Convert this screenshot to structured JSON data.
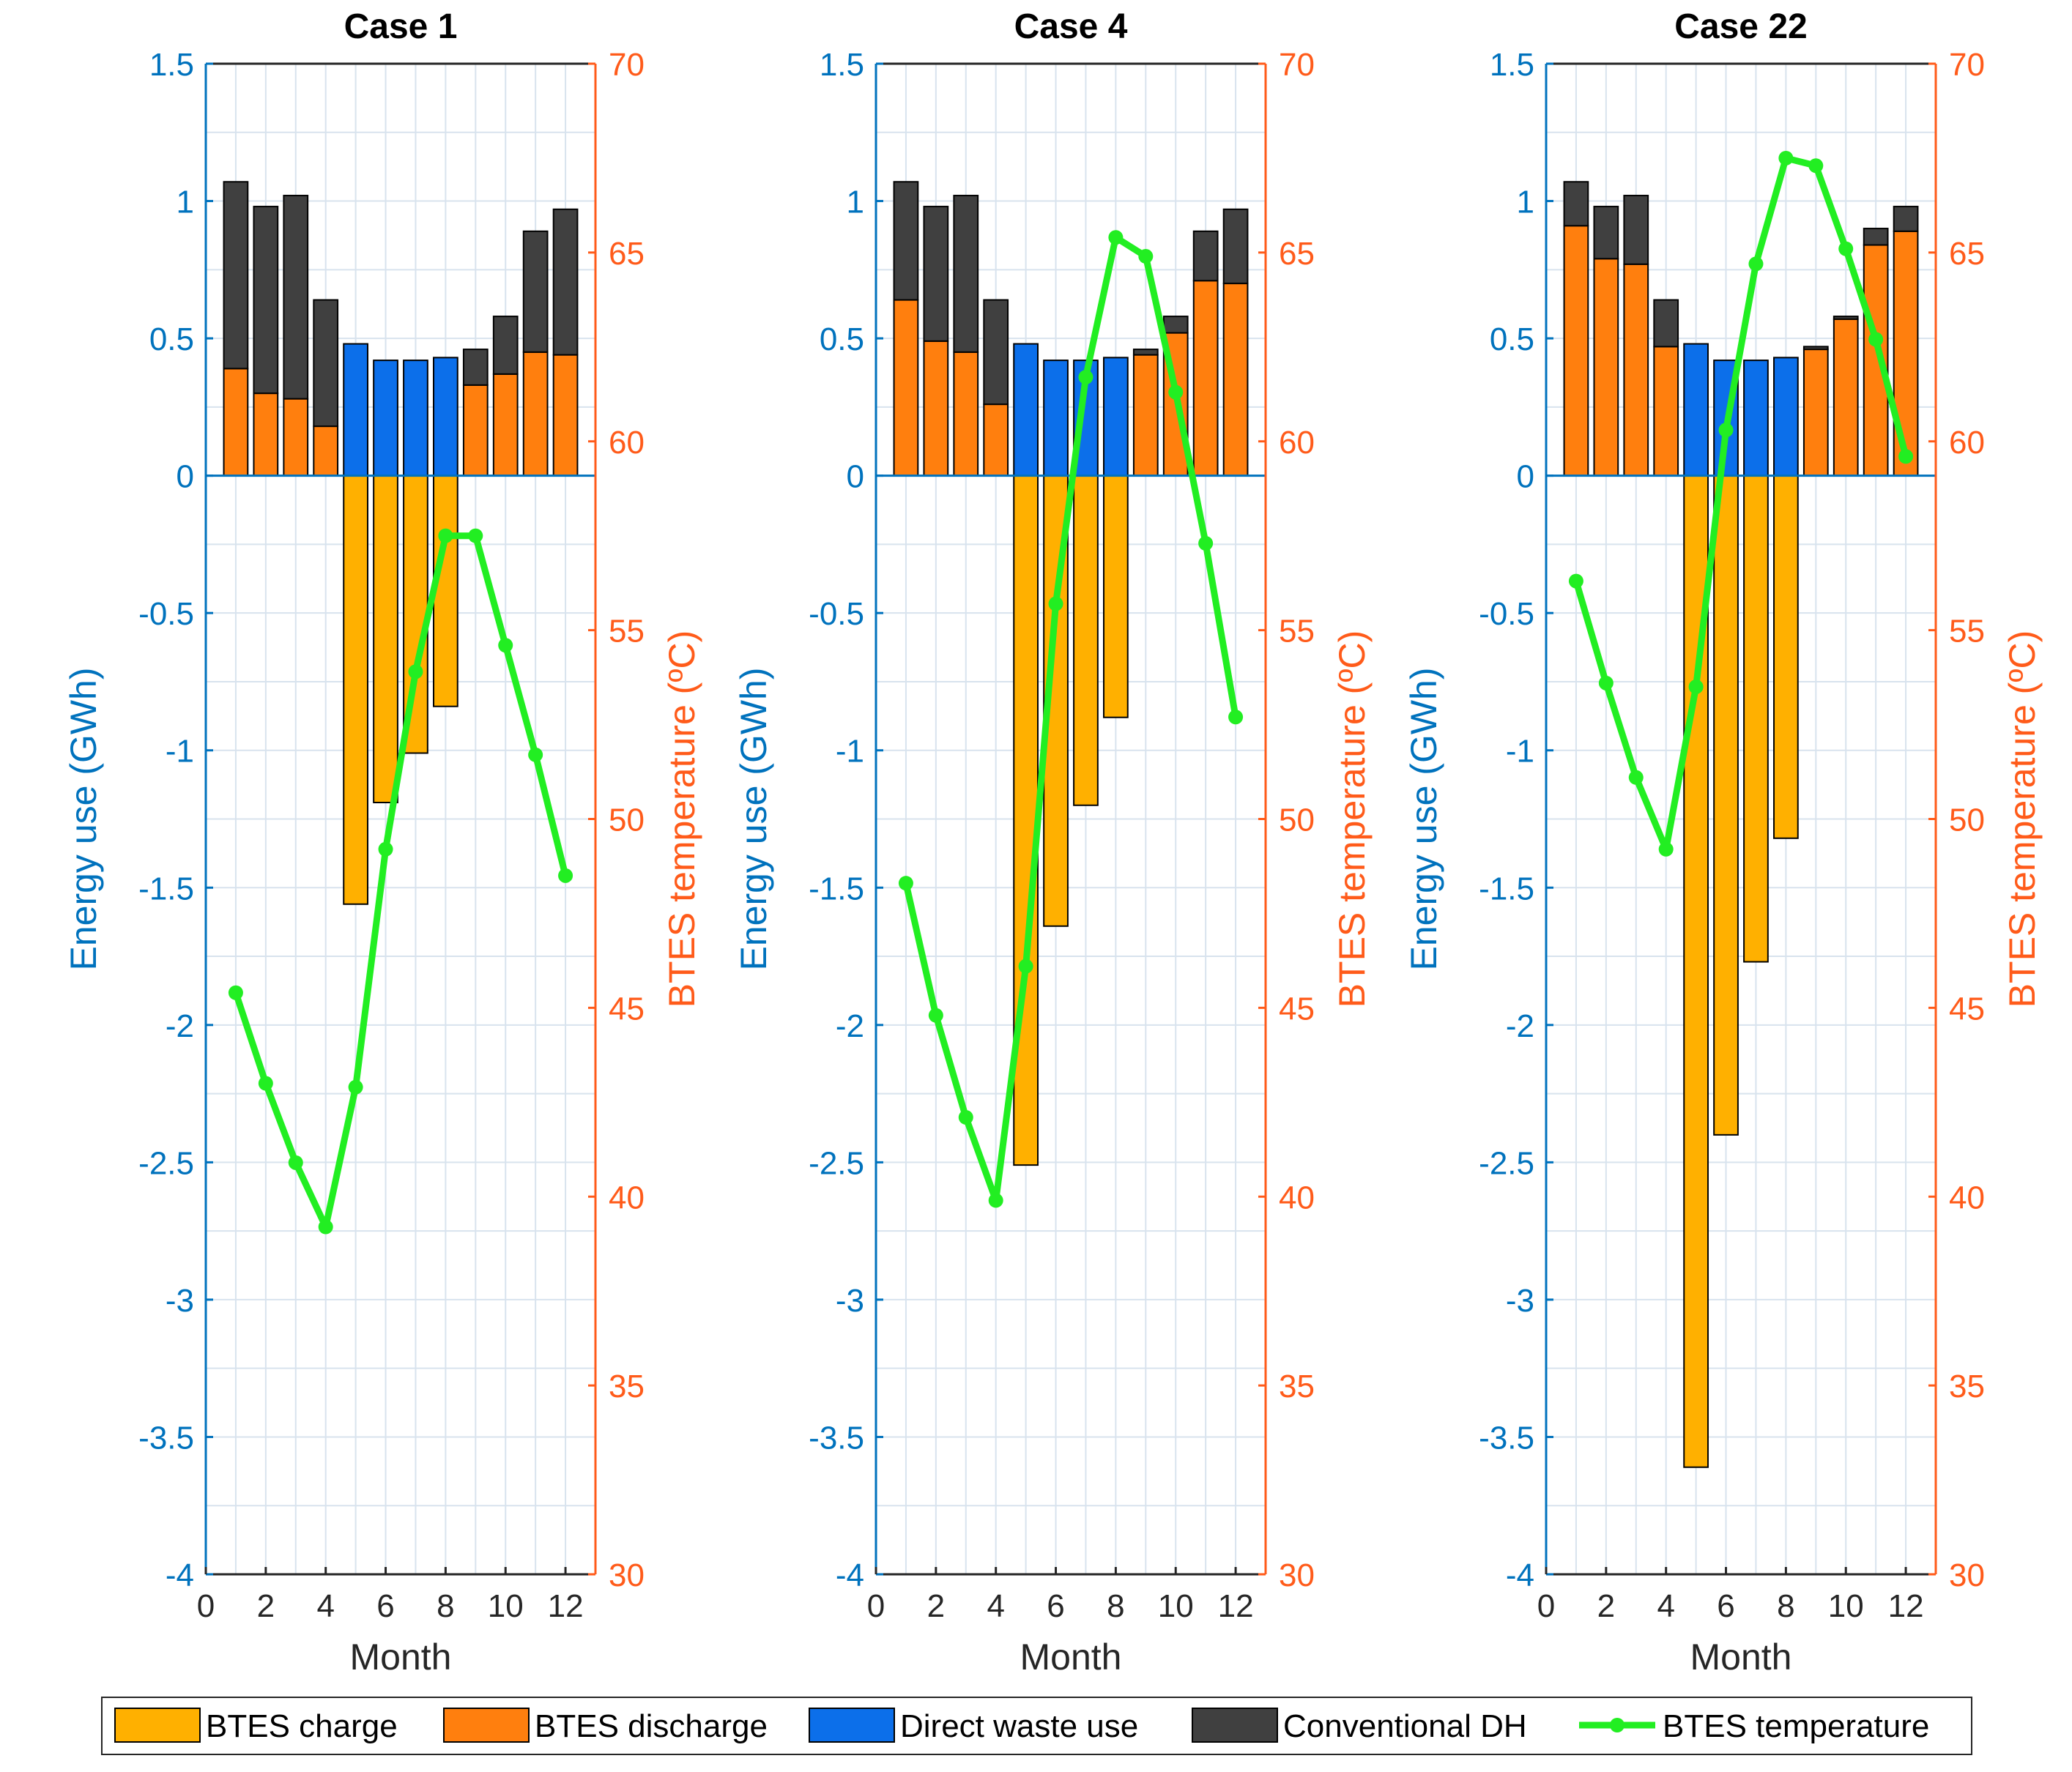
{
  "figure": {
    "legend_entries": [
      "BTES charge",
      "BTES discharge",
      "Direct waste use",
      "Conventional DH",
      "BTES temperature"
    ]
  },
  "colors": {
    "charge": "#FFB000",
    "discharge": "#FF7F0E",
    "direct": "#0C6FEA",
    "conventional": "#404040",
    "temperature": "#22EE22",
    "left_axis": "#0072BD",
    "right_axis": "#FF5B1A",
    "grid": "#D8E3EE",
    "bar_edge": "#000000"
  },
  "chart_data": [
    {
      "type": "bar",
      "title": "Case 1",
      "xlabel": "Month",
      "ylabel": "Energy use (GWh)",
      "y2label": "BTES temperature (ºC)",
      "xlim": [
        0,
        13
      ],
      "ylim": [
        -4,
        1.5
      ],
      "y2lim": [
        30,
        70
      ],
      "xticks": [
        "0",
        "2",
        "4",
        "6",
        "8",
        "10",
        "12"
      ],
      "yticks": [
        "-4",
        "-3.5",
        "-3",
        "-2.5",
        "-2",
        "-1.5",
        "-1",
        "-0.5",
        "0",
        "0.5",
        "1",
        "1.5"
      ],
      "y2ticks": [
        "30",
        "35",
        "40",
        "45",
        "50",
        "55",
        "60",
        "65",
        "70"
      ],
      "grid": true,
      "stacked": true,
      "x": [
        1,
        2,
        3,
        4,
        5,
        6,
        7,
        8,
        9,
        10,
        11,
        12
      ],
      "series": [
        {
          "name": "BTES charge",
          "axis": "left",
          "values": [
            0,
            0,
            0,
            0,
            -1.56,
            -1.19,
            -1.01,
            -0.84,
            0,
            0,
            0,
            0
          ]
        },
        {
          "name": "BTES discharge",
          "axis": "left",
          "values": [
            0.39,
            0.3,
            0.28,
            0.18,
            0,
            0,
            0,
            0,
            0.33,
            0.37,
            0.45,
            0.44
          ]
        },
        {
          "name": "Direct waste use",
          "axis": "left",
          "values": [
            0,
            0,
            0,
            0,
            0.48,
            0.42,
            0.42,
            0.43,
            0,
            0,
            0,
            0
          ]
        },
        {
          "name": "Conventional DH",
          "axis": "left",
          "values": [
            0.68,
            0.68,
            0.74,
            0.46,
            0,
            0,
            0,
            0,
            0.13,
            0.21,
            0.44,
            0.53
          ]
        },
        {
          "name": "BTES temperature",
          "axis": "right",
          "type": "line",
          "values": [
            45.4,
            43.0,
            40.9,
            39.2,
            42.9,
            49.2,
            53.9,
            57.5,
            57.5,
            54.6,
            51.7,
            48.5
          ]
        }
      ]
    },
    {
      "type": "bar",
      "title": "Case 4",
      "xlabel": "Month",
      "ylabel": "Energy use (GWh)",
      "y2label": "BTES temperature (ºC)",
      "xlim": [
        0,
        13
      ],
      "ylim": [
        -4,
        1.5
      ],
      "y2lim": [
        30,
        70
      ],
      "xticks": [
        "0",
        "2",
        "4",
        "6",
        "8",
        "10",
        "12"
      ],
      "yticks": [
        "-4",
        "-3.5",
        "-3",
        "-2.5",
        "-2",
        "-1.5",
        "-1",
        "-0.5",
        "0",
        "0.5",
        "1",
        "1.5"
      ],
      "y2ticks": [
        "30",
        "35",
        "40",
        "45",
        "50",
        "55",
        "60",
        "65",
        "70"
      ],
      "grid": true,
      "stacked": true,
      "x": [
        1,
        2,
        3,
        4,
        5,
        6,
        7,
        8,
        9,
        10,
        11,
        12
      ],
      "series": [
        {
          "name": "BTES charge",
          "axis": "left",
          "values": [
            0,
            0,
            0,
            0,
            -2.51,
            -1.64,
            -1.2,
            -0.88,
            0,
            0,
            0,
            0
          ]
        },
        {
          "name": "BTES discharge",
          "axis": "left",
          "values": [
            0.64,
            0.49,
            0.45,
            0.26,
            0,
            0,
            0,
            0,
            0.44,
            0.52,
            0.71,
            0.7
          ]
        },
        {
          "name": "Direct waste use",
          "axis": "left",
          "values": [
            0,
            0,
            0,
            0,
            0.48,
            0.42,
            0.42,
            0.43,
            0,
            0,
            0,
            0
          ]
        },
        {
          "name": "Conventional DH",
          "axis": "left",
          "values": [
            0.43,
            0.49,
            0.57,
            0.38,
            0,
            0,
            0,
            0,
            0.02,
            0.06,
            0.18,
            0.27
          ]
        },
        {
          "name": "BTES temperature",
          "axis": "right",
          "type": "line",
          "values": [
            48.3,
            44.8,
            42.1,
            39.9,
            46.1,
            55.7,
            61.7,
            65.4,
            64.9,
            61.3,
            57.3,
            52.7
          ]
        }
      ]
    },
    {
      "type": "bar",
      "title": "Case 22",
      "xlabel": "Month",
      "ylabel": "Energy use (GWh)",
      "y2label": "BTES temperature (ºC)",
      "xlim": [
        0,
        13
      ],
      "ylim": [
        -4,
        1.5
      ],
      "y2lim": [
        30,
        70
      ],
      "xticks": [
        "0",
        "2",
        "4",
        "6",
        "8",
        "10",
        "12"
      ],
      "yticks": [
        "-4",
        "-3.5",
        "-3",
        "-2.5",
        "-2",
        "-1.5",
        "-1",
        "-0.5",
        "0",
        "0.5",
        "1",
        "1.5"
      ],
      "y2ticks": [
        "30",
        "35",
        "40",
        "45",
        "50",
        "55",
        "60",
        "65",
        "70"
      ],
      "grid": true,
      "stacked": true,
      "x": [
        1,
        2,
        3,
        4,
        5,
        6,
        7,
        8,
        9,
        10,
        11,
        12
      ],
      "series": [
        {
          "name": "BTES charge",
          "axis": "left",
          "values": [
            0,
            0,
            0,
            0,
            -3.61,
            -2.4,
            -1.77,
            -1.32,
            0,
            0,
            0,
            0
          ]
        },
        {
          "name": "BTES discharge",
          "axis": "left",
          "values": [
            0.91,
            0.79,
            0.77,
            0.47,
            0,
            0,
            0,
            0,
            0.46,
            0.57,
            0.84,
            0.89
          ]
        },
        {
          "name": "Direct waste use",
          "axis": "left",
          "values": [
            0,
            0,
            0,
            0,
            0.48,
            0.42,
            0.42,
            0.43,
            0,
            0,
            0,
            0
          ]
        },
        {
          "name": "Conventional DH",
          "axis": "left",
          "values": [
            0.16,
            0.19,
            0.25,
            0.17,
            0,
            0,
            0,
            0,
            0.01,
            0.01,
            0.06,
            0.09
          ]
        },
        {
          "name": "BTES temperature",
          "axis": "right",
          "type": "line",
          "values": [
            56.3,
            53.6,
            51.1,
            49.2,
            53.5,
            60.3,
            64.7,
            67.5,
            67.3,
            65.1,
            62.7,
            59.6
          ]
        }
      ]
    }
  ]
}
